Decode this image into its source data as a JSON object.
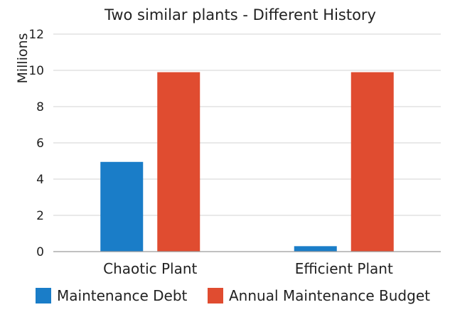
{
  "chart_data": {
    "type": "bar",
    "title": "Two similar plants - Different History",
    "ylabel": "Millions",
    "xlabel": "",
    "ylim": [
      0,
      12
    ],
    "yticks": [
      0,
      2,
      4,
      6,
      8,
      10,
      12
    ],
    "grid": true,
    "legend_position": "bottom",
    "categories": [
      "Chaotic Plant",
      "Efficient Plant"
    ],
    "series": [
      {
        "name": "Maintenance Debt",
        "values": [
          4.95,
          0.3
        ],
        "color": "#1a7dc8"
      },
      {
        "name": "Annual Maintenance Budget",
        "values": [
          9.9,
          9.9
        ],
        "color": "#e04c30"
      }
    ]
  }
}
